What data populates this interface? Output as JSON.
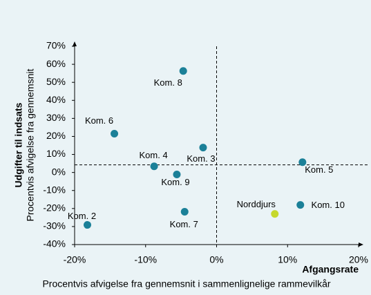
{
  "chart_data": {
    "type": "scatter",
    "x_label": "Afgangsrate",
    "x_sublabel": "Procentvis afvigelse fra gennemsnit i sammenlignelige rammevilkår",
    "y_label": "Udgifter til indsats",
    "y_sublabel": "Procentvis afvigelse fra gennemsnit",
    "point_labels": [
      "Kom. 8",
      "Kom. 6",
      "Kom. 3",
      "Kom. 4",
      "Kom. 9",
      "Kom. 5",
      "Kom. 2",
      "Kom. 7",
      "Norddjurs",
      "Kom. 10"
    ],
    "x": [
      -4.7,
      -14.4,
      -1.9,
      -8.8,
      -5.6,
      12.1,
      -18.2,
      -4.5,
      8.2,
      11.8
    ],
    "values": [
      56.3,
      21.5,
      13.8,
      3.4,
      -1.1,
      5.7,
      -29.1,
      -21.8,
      -23,
      -18
    ],
    "colors": [
      "#1b8098",
      "#1b8098",
      "#1b8098",
      "#1b8098",
      "#1b8098",
      "#1b8098",
      "#1b8098",
      "#1b8098",
      "#c6d82c",
      "#1b8098"
    ],
    "xlim": [
      -20,
      20
    ],
    "ylim": [
      -40,
      70
    ],
    "xticks": [
      {
        "value": -20,
        "label": "-20%"
      },
      {
        "value": -10,
        "label": "-10%"
      },
      {
        "value": 0,
        "label": "0%"
      },
      {
        "value": 10,
        "label": "10%"
      },
      {
        "value": 20,
        "label": "20%"
      }
    ],
    "yticks": [
      {
        "value": -40,
        "label": "-40%"
      },
      {
        "value": -30,
        "label": "-30%"
      },
      {
        "value": -20,
        "label": "-20%"
      },
      {
        "value": -10,
        "label": "-10%"
      },
      {
        "value": 0,
        "label": "0%"
      },
      {
        "value": 10,
        "label": "10%"
      },
      {
        "value": 20,
        "label": "20%"
      },
      {
        "value": 30,
        "label": "30%"
      },
      {
        "value": 40,
        "label": "40%"
      },
      {
        "value": 50,
        "label": "50%"
      },
      {
        "value": 60,
        "label": "60%"
      },
      {
        "value": 70,
        "label": "70%"
      }
    ],
    "vline": 0,
    "hline": 4.2
  }
}
